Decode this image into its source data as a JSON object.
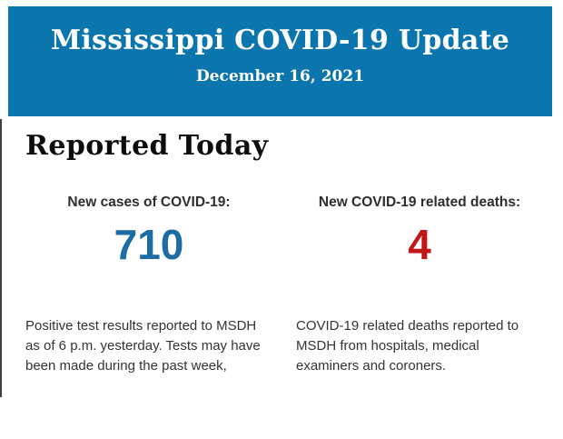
{
  "header": {
    "title": "Mississippi COVID-19 Update",
    "date": "December 16, 2021",
    "background_color": "#0b76ad",
    "text_color": "#ffffff"
  },
  "section": {
    "heading": "Reported Today"
  },
  "stats": {
    "cases": {
      "label": "New cases of COVID-19:",
      "value": "710",
      "value_color": "#1b6da3",
      "description": "Positive test results reported to MSDH as of 6 p.m. yesterday. Tests may have been made during the past week,"
    },
    "deaths": {
      "label": "New COVID-19 related deaths:",
      "value": "4",
      "value_color": "#c01717",
      "description": "COVID-19 related deaths reported to MSDH from hospitals, medical examiners and coroners."
    }
  },
  "decor": {
    "left_edge_line_color": "#3f3f3f"
  }
}
